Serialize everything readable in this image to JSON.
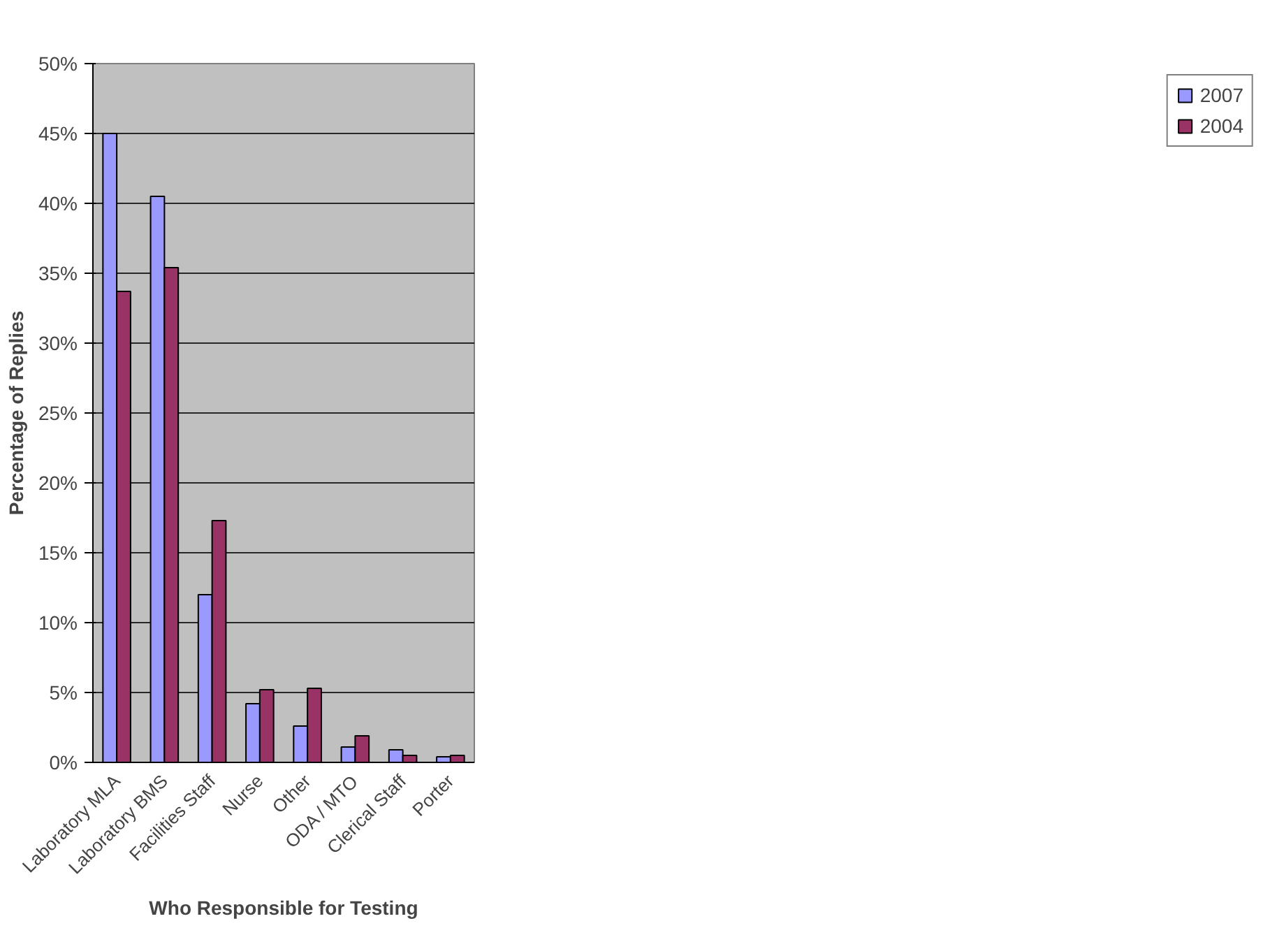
{
  "chart_data": {
    "type": "bar",
    "xlabel": "Who Responsible for Testing",
    "ylabel": "Percentage of Replies",
    "categories": [
      "Laboratory MLA",
      "Laboratory BMS",
      "Facilities Staff",
      "Nurse",
      "Other",
      "ODA / MTO",
      "Clerical Staff",
      "Porter"
    ],
    "series": [
      {
        "name": "2007",
        "color": "#9999ff",
        "values": [
          45.0,
          40.5,
          12.0,
          4.2,
          2.6,
          1.1,
          0.9,
          0.4
        ]
      },
      {
        "name": "2004",
        "color": "#993366",
        "values": [
          33.7,
          35.4,
          17.3,
          5.2,
          5.3,
          1.9,
          0.5,
          0.5
        ]
      }
    ],
    "ylim": [
      0,
      50
    ],
    "yticks": [
      {
        "value": 0,
        "label": "0%"
      },
      {
        "value": 5,
        "label": "5%"
      },
      {
        "value": 10,
        "label": "10%"
      },
      {
        "value": 15,
        "label": "15%"
      },
      {
        "value": 20,
        "label": "20%"
      },
      {
        "value": 25,
        "label": "25%"
      },
      {
        "value": 30,
        "label": "30%"
      },
      {
        "value": 35,
        "label": "35%"
      },
      {
        "value": 40,
        "label": "40%"
      },
      {
        "value": 45,
        "label": "45%"
      },
      {
        "value": 50,
        "label": "50%"
      }
    ],
    "grid": "y",
    "legend": "right"
  }
}
